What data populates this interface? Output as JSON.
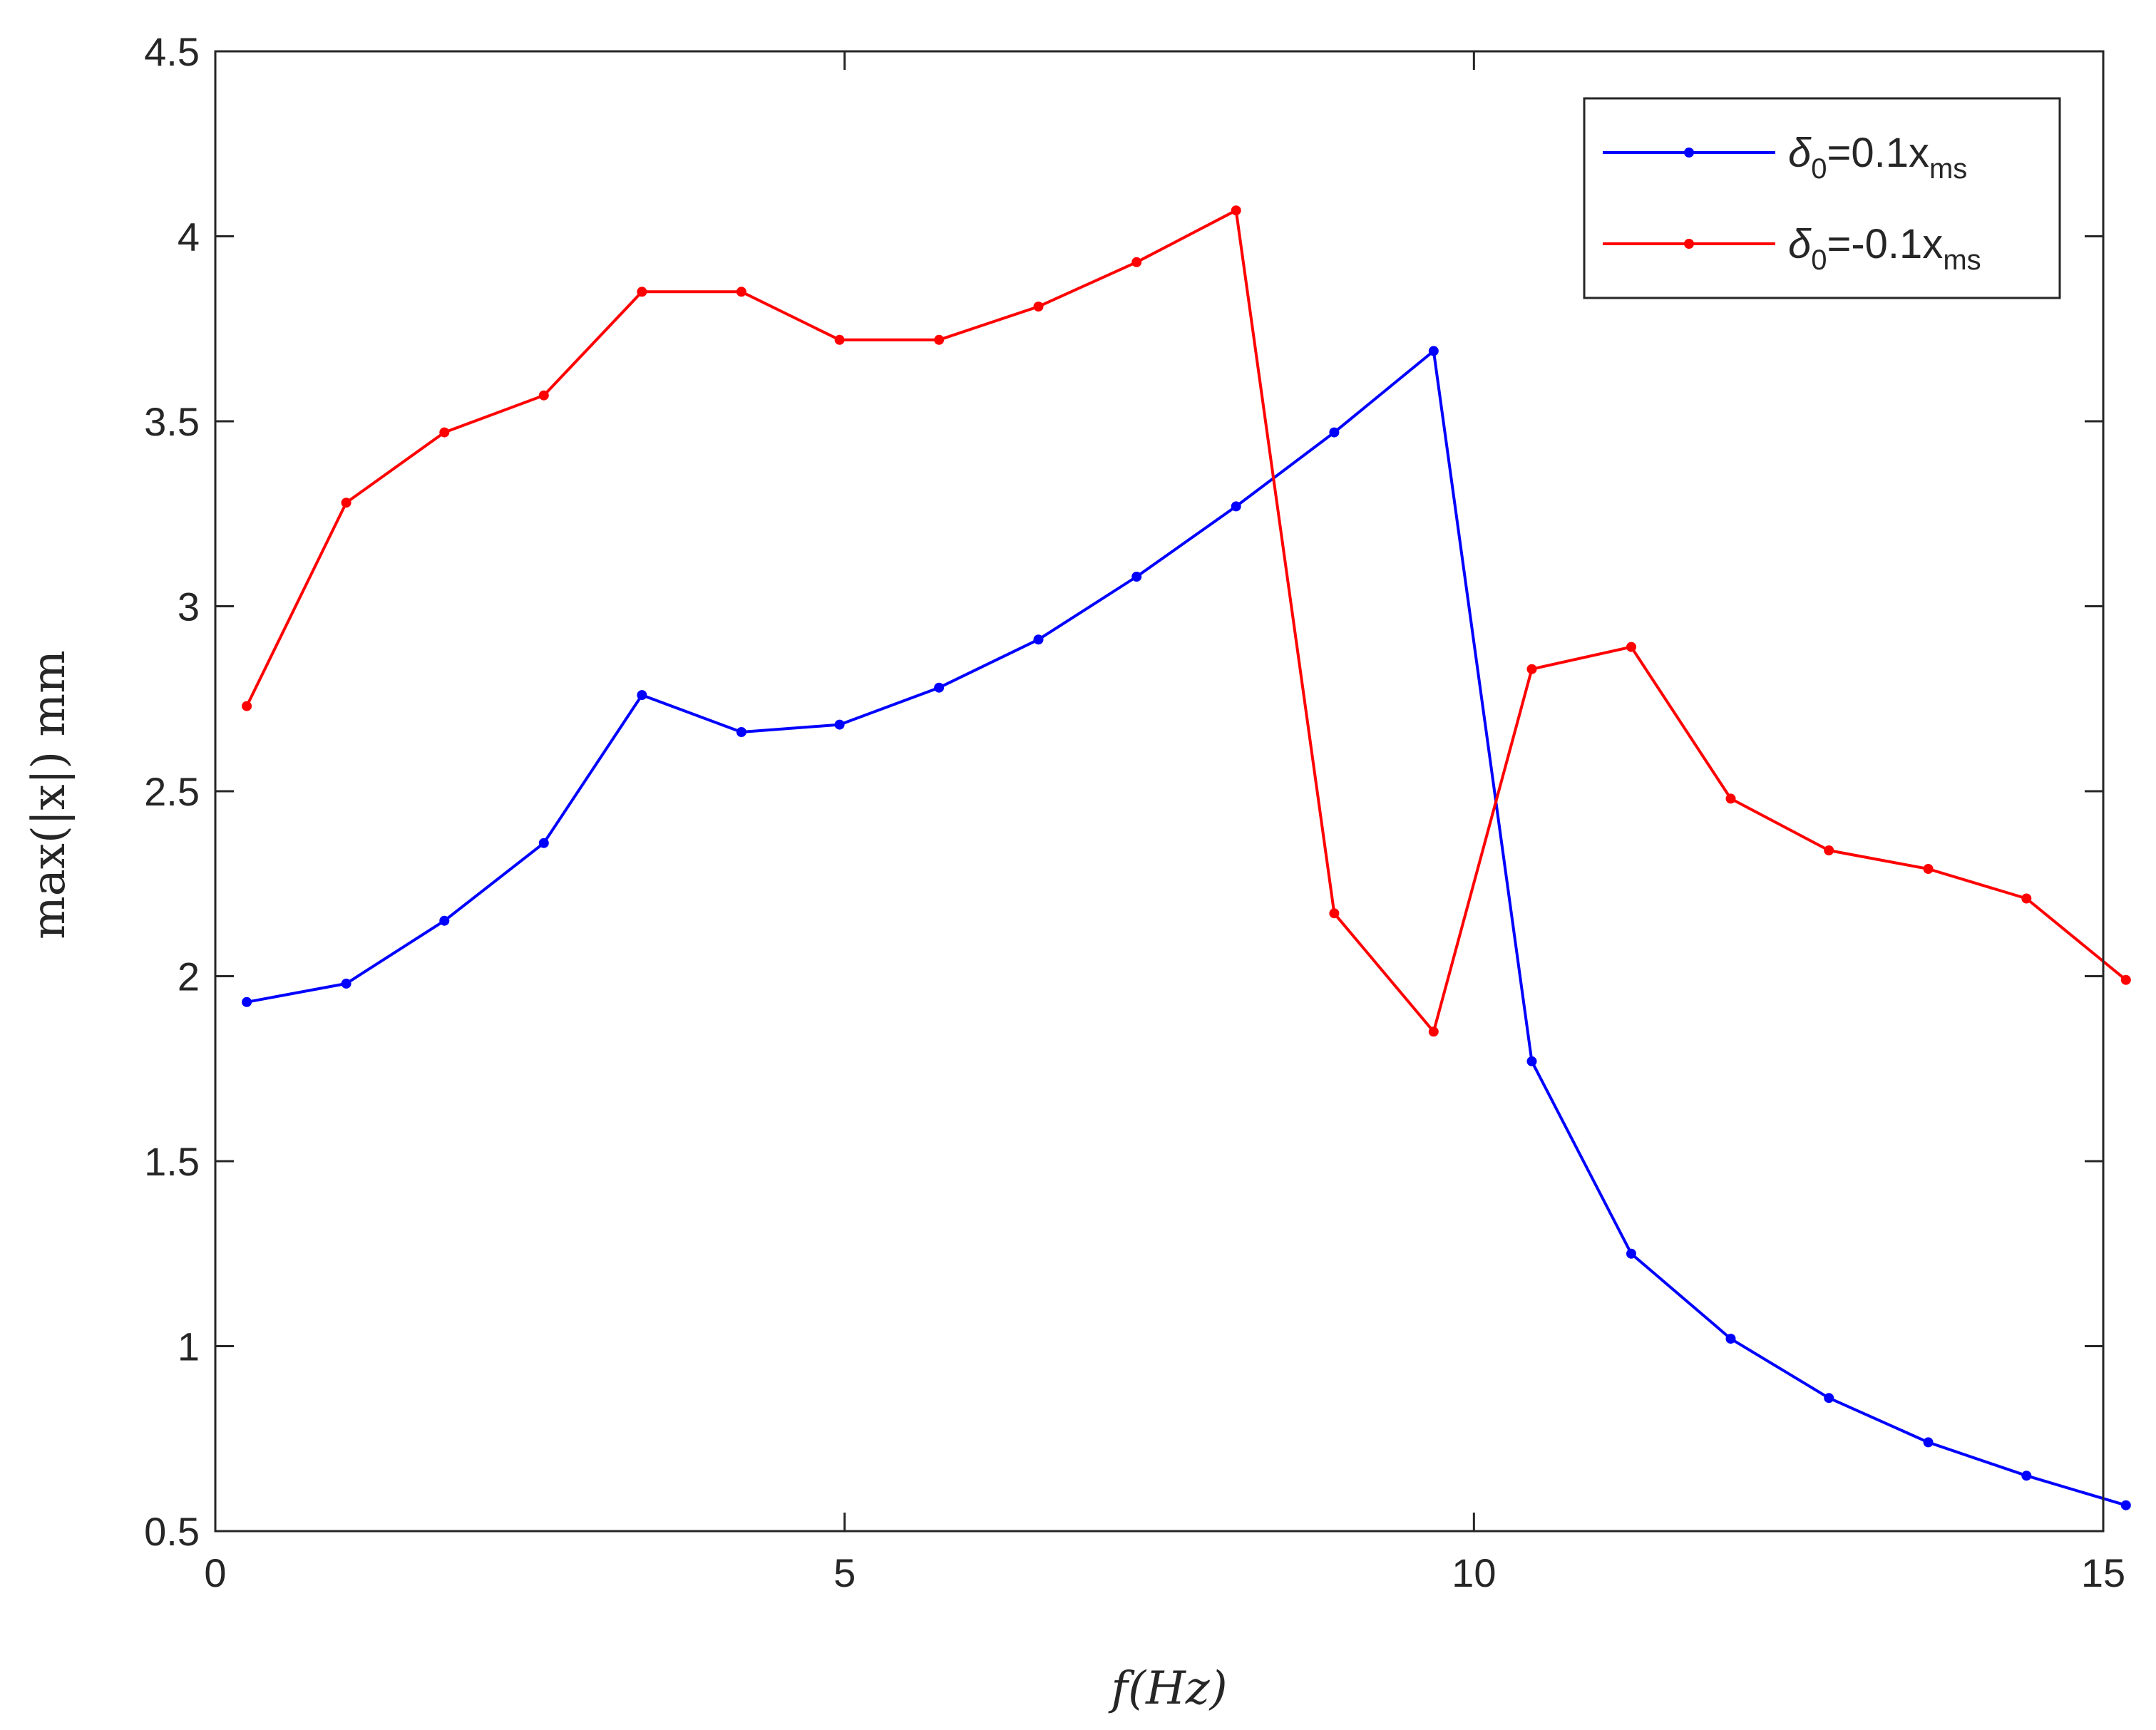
{
  "colors": {
    "series_positive": "#0000ff",
    "series_negative": "#ff0000",
    "axis": "#262626"
  },
  "chart_data": {
    "type": "line",
    "title": "",
    "xlabel": "f(Hz)",
    "ylabel": "max(|x|) mm",
    "xlim": [
      0,
      15
    ],
    "ylim": [
      0.5,
      4.5
    ],
    "x_ticks": [
      0,
      5,
      10,
      15
    ],
    "x_tick_labels": [
      "0",
      "5",
      "10",
      "15"
    ],
    "y_ticks": [
      0.5,
      1,
      1.5,
      2,
      2.5,
      3,
      3.5,
      4,
      4.5
    ],
    "y_tick_labels": [
      "0.5",
      "1",
      "1.5",
      "2",
      "2.5",
      "3",
      "3.5",
      "4",
      "4.5"
    ],
    "grid": false,
    "legend_position": "top-right",
    "x": [
      0.25,
      1.04,
      1.82,
      2.61,
      3.39,
      4.18,
      4.96,
      5.75,
      6.54,
      7.32,
      8.11,
      8.89,
      9.68,
      10.46,
      11.25,
      12.04,
      12.82,
      13.61,
      14.39,
      15.18
    ],
    "series": [
      {
        "name": "δ0=0.1xms",
        "legend": {
          "symbol": "δ",
          "symbol_sub": "0",
          "middle": "=0.1x",
          "tail_sub": "ms"
        },
        "color": "#0000ff",
        "marker": "dot",
        "values": [
          1.93,
          1.98,
          2.15,
          2.36,
          2.76,
          2.66,
          2.68,
          2.78,
          2.91,
          3.08,
          3.27,
          3.47,
          3.69,
          1.77,
          1.25,
          1.02,
          0.86,
          0.74,
          0.65,
          0.57
        ]
      },
      {
        "name": "δ0=-0.1xms",
        "legend": {
          "symbol": "δ",
          "symbol_sub": "0",
          "middle": "=-0.1x",
          "tail_sub": "ms"
        },
        "color": "#ff0000",
        "marker": "dot",
        "values": [
          2.73,
          3.28,
          3.47,
          3.57,
          3.85,
          3.85,
          3.72,
          3.72,
          3.81,
          3.93,
          4.07,
          2.17,
          1.85,
          2.83,
          2.89,
          2.48,
          2.34,
          2.29,
          2.21,
          1.99
        ]
      }
    ]
  }
}
